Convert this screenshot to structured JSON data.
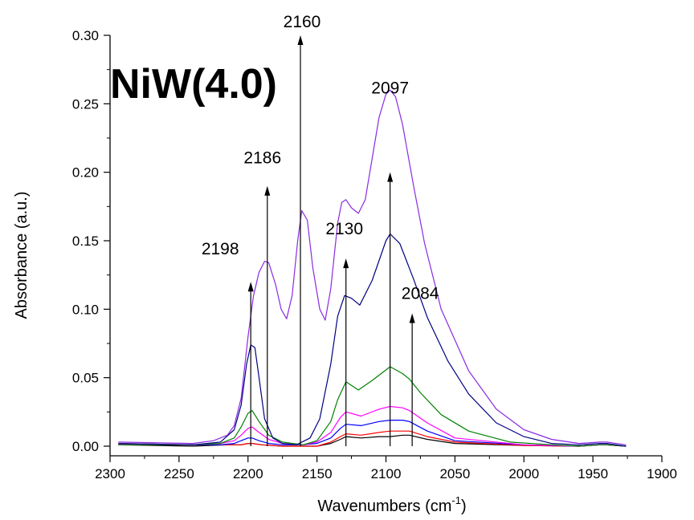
{
  "chart_data": {
    "type": "line",
    "title": "NiW(4.0)",
    "xlabel": "Wavenumbers (cm",
    "xlabel_sup": "-1",
    "xlabel_end": ")",
    "ylabel": "Absorbance (a.u.)",
    "xlim": [
      2300,
      1900
    ],
    "ylim": [
      0,
      0.3
    ],
    "x_reversed": true,
    "x_ticks": [
      2300,
      2250,
      2200,
      2150,
      2100,
      2050,
      2000,
      1950,
      1900
    ],
    "y_ticks": [
      0.0,
      0.05,
      0.1,
      0.15,
      0.2,
      0.25,
      0.3
    ],
    "grid": false,
    "legend": "none",
    "annotations": [
      {
        "label": "2198",
        "x": 2198,
        "y_from": 0.0,
        "y_to": 0.12
      },
      {
        "label": "2186",
        "x": 2186,
        "y_from": 0.0,
        "y_to": 0.19
      },
      {
        "label": "2160",
        "x": 2162,
        "y_from": 0.0,
        "y_to": 0.3
      },
      {
        "label": "2130",
        "x": 2129,
        "y_from": 0.0,
        "y_to": 0.137
      },
      {
        "label": "2097",
        "x": 2097,
        "y_from": 0.0,
        "y_to": 0.2
      },
      {
        "label": "2084",
        "x": 2081,
        "y_from": 0.0,
        "y_to": 0.097
      }
    ],
    "x_range": [
      2294,
      1926
    ],
    "series": [
      {
        "color": "#000000",
        "x": [
          2294,
          2240,
          2215,
          2205,
          2200,
          2197,
          2190,
          2175,
          2150,
          2140,
          2133,
          2129,
          2118,
          2105,
          2097,
          2088,
          2083,
          2070,
          2050,
          2000,
          1960,
          1945,
          1940,
          1926
        ],
        "y": [
          0.001,
          0.0,
          0.001,
          0.001,
          0.002,
          0.002,
          0.001,
          0.0,
          0.0,
          0.002,
          0.005,
          0.007,
          0.006,
          0.007,
          0.007,
          0.008,
          0.008,
          0.005,
          0.002,
          0.0005,
          0.0,
          0.001,
          0.001,
          0.0
        ]
      },
      {
        "color": "#ff0000",
        "x": [
          2294,
          2240,
          2215,
          2205,
          2200,
          2197,
          2190,
          2175,
          2150,
          2140,
          2133,
          2129,
          2118,
          2105,
          2097,
          2088,
          2083,
          2070,
          2050,
          2000,
          1960,
          1945,
          1940,
          1926
        ],
        "y": [
          0.002,
          0.001,
          0.001,
          0.001,
          0.002,
          0.002,
          0.001,
          0.0,
          0.0,
          0.003,
          0.007,
          0.009,
          0.008,
          0.01,
          0.011,
          0.011,
          0.011,
          0.007,
          0.003,
          0.0005,
          0.0,
          0.001,
          0.001,
          0.0
        ]
      },
      {
        "color": "#0000ff",
        "x": [
          2294,
          2240,
          2220,
          2210,
          2205,
          2200,
          2197,
          2192,
          2185,
          2175,
          2160,
          2150,
          2140,
          2133,
          2129,
          2118,
          2105,
          2097,
          2088,
          2083,
          2070,
          2050,
          2000,
          1960,
          1945,
          1940,
          1926
        ],
        "y": [
          0.001,
          0.001,
          0.001,
          0.002,
          0.004,
          0.006,
          0.006,
          0.004,
          0.002,
          0.001,
          0.001,
          0.002,
          0.006,
          0.013,
          0.016,
          0.015,
          0.018,
          0.019,
          0.019,
          0.018,
          0.011,
          0.004,
          0.001,
          0.0,
          0.001,
          0.001,
          0.0
        ]
      },
      {
        "color": "#ff00ff",
        "x": [
          2294,
          2240,
          2220,
          2210,
          2205,
          2200,
          2197,
          2192,
          2185,
          2175,
          2160,
          2150,
          2140,
          2133,
          2129,
          2118,
          2105,
          2097,
          2088,
          2083,
          2070,
          2050,
          2000,
          1960,
          1945,
          1940,
          1926
        ],
        "y": [
          0.001,
          0.001,
          0.002,
          0.004,
          0.008,
          0.013,
          0.014,
          0.01,
          0.005,
          0.002,
          0.001,
          0.003,
          0.01,
          0.021,
          0.025,
          0.022,
          0.027,
          0.029,
          0.028,
          0.026,
          0.017,
          0.006,
          0.001,
          0.0,
          0.001,
          0.001,
          0.0
        ]
      },
      {
        "color": "#008000",
        "x": [
          2294,
          2240,
          2220,
          2210,
          2205,
          2200,
          2197,
          2192,
          2185,
          2175,
          2160,
          2150,
          2140,
          2135,
          2129,
          2120,
          2110,
          2097,
          2088,
          2083,
          2075,
          2060,
          2040,
          2010,
          1980,
          1960,
          1945,
          1940,
          1926
        ],
        "y": [
          0.001,
          0.001,
          0.002,
          0.006,
          0.014,
          0.024,
          0.026,
          0.018,
          0.008,
          0.003,
          0.001,
          0.004,
          0.018,
          0.034,
          0.047,
          0.041,
          0.048,
          0.058,
          0.053,
          0.049,
          0.039,
          0.023,
          0.011,
          0.003,
          0.001,
          0.0,
          0.001,
          0.001,
          0.0
        ]
      },
      {
        "color": "#000080",
        "x": [
          2294,
          2240,
          2220,
          2210,
          2205,
          2201,
          2198,
          2195,
          2192,
          2188,
          2182,
          2175,
          2165,
          2155,
          2148,
          2140,
          2135,
          2130,
          2125,
          2119,
          2110,
          2100,
          2097,
          2090,
          2080,
          2070,
          2055,
          2040,
          2020,
          2000,
          1980,
          1960,
          1945,
          1940,
          1926
        ],
        "y": [
          0.002,
          0.001,
          0.003,
          0.012,
          0.03,
          0.06,
          0.074,
          0.072,
          0.05,
          0.02,
          0.006,
          0.002,
          0.001,
          0.006,
          0.02,
          0.06,
          0.095,
          0.11,
          0.108,
          0.103,
          0.121,
          0.15,
          0.155,
          0.148,
          0.122,
          0.094,
          0.062,
          0.038,
          0.017,
          0.007,
          0.002,
          0.001,
          0.002,
          0.002,
          0.0
        ]
      },
      {
        "color": "#8a2be2",
        "x": [
          2294,
          2240,
          2225,
          2215,
          2210,
          2205,
          2200,
          2196,
          2192,
          2188,
          2185,
          2180,
          2176,
          2172,
          2168,
          2164,
          2161,
          2157,
          2153,
          2148,
          2144,
          2140,
          2135,
          2132,
          2129,
          2125,
          2120,
          2115,
          2110,
          2105,
          2100,
          2097,
          2093,
          2088,
          2080,
          2072,
          2060,
          2040,
          2020,
          2000,
          1980,
          1960,
          1945,
          1940,
          1926
        ],
        "y": [
          0.003,
          0.002,
          0.004,
          0.008,
          0.015,
          0.035,
          0.08,
          0.11,
          0.127,
          0.135,
          0.134,
          0.118,
          0.1,
          0.093,
          0.11,
          0.15,
          0.172,
          0.165,
          0.13,
          0.1,
          0.092,
          0.115,
          0.163,
          0.178,
          0.18,
          0.174,
          0.17,
          0.18,
          0.21,
          0.24,
          0.257,
          0.26,
          0.255,
          0.235,
          0.19,
          0.148,
          0.1,
          0.055,
          0.027,
          0.012,
          0.005,
          0.002,
          0.003,
          0.003,
          0.001
        ]
      }
    ]
  }
}
